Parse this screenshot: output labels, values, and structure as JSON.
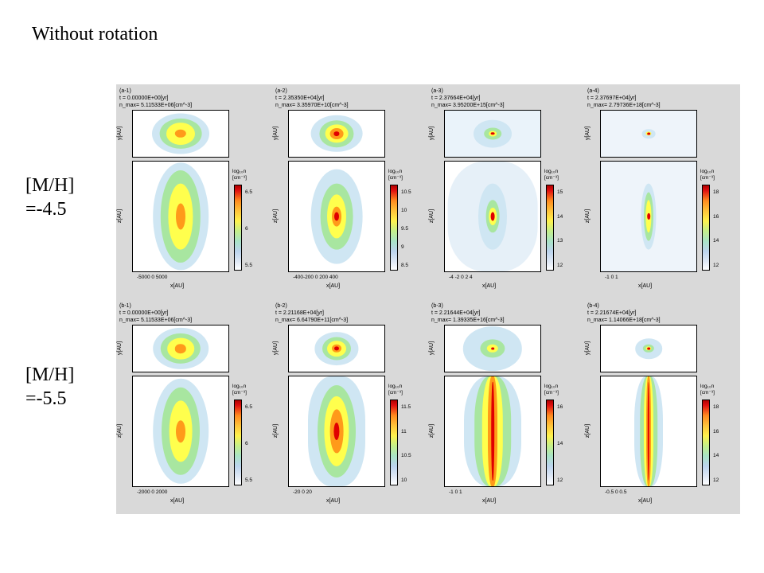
{
  "title": "Without rotation",
  "rows": [
    {
      "label_line1": "[M/H]",
      "label_line2": "=-4.5"
    },
    {
      "label_line1": "[M/H]",
      "label_line2": "=-5.5"
    }
  ],
  "panels": [
    {
      "id": "(a-1)",
      "t": "t  =  0.00000E+00[yr]",
      "n": "n_max= 5.11533E+06[cm^-3]",
      "cbar_title": "log₁₀n",
      "cbar_unit": "[cm⁻³]",
      "cbar_ticks": [
        "6.5",
        "6",
        "5.5"
      ],
      "x_ticks": "-5000     0     5000",
      "xlabel": "x[AU]",
      "ylabel_top": "y[AU]",
      "ylabel_bottom": "z[AU]"
    },
    {
      "id": "(a-2)",
      "t": "t  =  2.35350E+04[yr]",
      "n": "n_max= 3.35970E+10[cm^-3]",
      "cbar_title": "log₁₀n",
      "cbar_unit": "[cm⁻³]",
      "cbar_ticks": [
        "10.5",
        "10",
        "9.5",
        "9",
        "8.5"
      ],
      "x_ticks": "-400-200  0  200  400",
      "xlabel": "x[AU]",
      "ylabel_top": "y[AU]",
      "ylabel_bottom": "z[AU]"
    },
    {
      "id": "(a-3)",
      "t": "t  =  2.37664E+04[yr]",
      "n": "n_max= 3.95200E+15[cm^-3]",
      "cbar_title": "log₁₀n",
      "cbar_unit": "[cm⁻³]",
      "cbar_ticks": [
        "15",
        "14",
        "13",
        "12"
      ],
      "x_ticks": "-4   -2    0    2    4",
      "xlabel": "x[AU]",
      "ylabel_top": "y[AU]",
      "ylabel_bottom": "z[AU]"
    },
    {
      "id": "(a-4)",
      "t": "t  =  2.37697E+04[yr]",
      "n": "n_max= 2.79736E+18[cm^-3]",
      "cbar_title": "log₁₀n",
      "cbar_unit": "[cm⁻³]",
      "cbar_ticks": [
        "18",
        "16",
        "14",
        "12"
      ],
      "x_ticks": "-1     0     1",
      "xlabel": "x[AU]",
      "ylabel_top": "y[AU]",
      "ylabel_bottom": "z[AU]"
    },
    {
      "id": "(b-1)",
      "t": "t  =  0.00000E+00[yr]",
      "n": "n_max= 5.11533E+06[cm^-3]",
      "cbar_title": "log₁₀n",
      "cbar_unit": "[cm⁻³]",
      "cbar_ticks": [
        "6.5",
        "6",
        "5.5"
      ],
      "x_ticks": "-2000    0    2000",
      "xlabel": "x[AU]",
      "ylabel_top": "y[AU]",
      "ylabel_bottom": "z[AU]"
    },
    {
      "id": "(b-2)",
      "t": "t  =  2.21168E+04[yr]",
      "n": "n_max= 6.64790E+11[cm^-3]",
      "cbar_title": "log₁₀n",
      "cbar_unit": "[cm⁻³]",
      "cbar_ticks": [
        "11.5",
        "11",
        "10.5",
        "10"
      ],
      "x_ticks": "-20     0     20",
      "xlabel": "x[AU]",
      "ylabel_top": "y[AU]",
      "ylabel_bottom": "z[AU]"
    },
    {
      "id": "(b-3)",
      "t": "t  =  2.21644E+04[yr]",
      "n": "n_max= 1.39335E+16[cm^-3]",
      "cbar_title": "log₁₀n",
      "cbar_unit": "[cm⁻³]",
      "cbar_ticks": [
        "16",
        "14",
        "12"
      ],
      "x_ticks": "-1      0      1",
      "xlabel": "x[AU]",
      "ylabel_top": "y[AU]",
      "ylabel_bottom": "z[AU]"
    },
    {
      "id": "(b-4)",
      "t": "t  =  2.21674E+04[yr]",
      "n": "n_max= 1.14066E+18[cm^-3]",
      "cbar_title": "log₁₀n",
      "cbar_unit": "[cm⁻³]",
      "cbar_ticks": [
        "18",
        "16",
        "14",
        "12"
      ],
      "x_ticks": "-0.5    0    0.5",
      "xlabel": "x[AU]",
      "ylabel_top": "y[AU]",
      "ylabel_bottom": "z[AU]"
    }
  ],
  "colors": {
    "outer": "#cfe6f3",
    "mid": "#a8e6a0",
    "inner": "#ffff4d",
    "hot": "#ff9a1a",
    "core": "#e00000"
  }
}
